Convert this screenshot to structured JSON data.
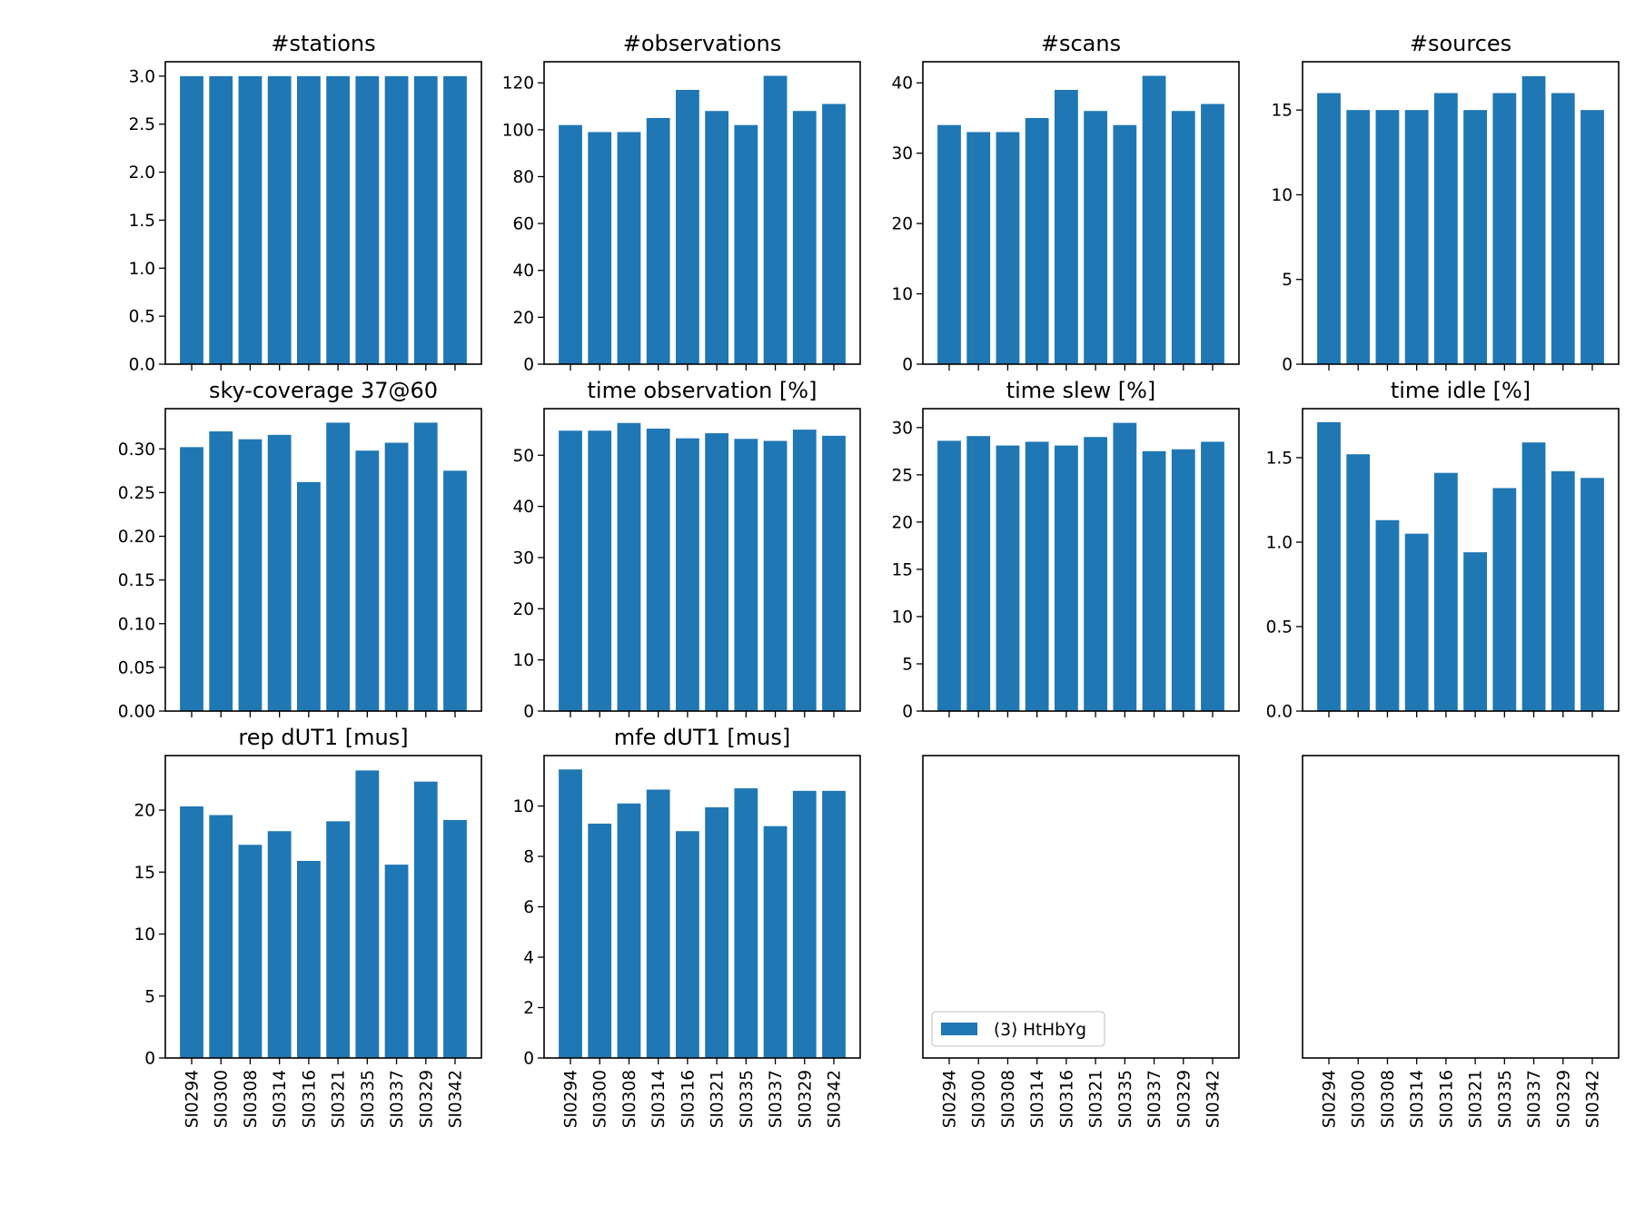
{
  "colors": {
    "bar": "#1f77b4"
  },
  "categories": [
    "SI0294",
    "SI0300",
    "SI0308",
    "SI0314",
    "SI0316",
    "SI0321",
    "SI0335",
    "SI0337",
    "SI0329",
    "SI0342"
  ],
  "legend": {
    "label": "(3) HtHbYg",
    "color": "#1f77b4"
  },
  "chart_data": [
    {
      "type": "bar",
      "title": "#stations",
      "series": [
        {
          "name": "(3) HtHbYg",
          "values": [
            3,
            3,
            3,
            3,
            3,
            3,
            3,
            3,
            3,
            3
          ]
        }
      ],
      "ylim": [
        0,
        3.15
      ],
      "yticks": [
        0,
        0.5,
        1,
        1.5,
        2,
        2.5,
        3
      ],
      "ytick_labels": [
        "0.0",
        "0.5",
        "1.0",
        "1.5",
        "2.0",
        "2.5",
        "3.0"
      ]
    },
    {
      "type": "bar",
      "title": "#observations",
      "series": [
        {
          "name": "(3) HtHbYg",
          "values": [
            102,
            99,
            99,
            105,
            117,
            108,
            102,
            123,
            108,
            111
          ]
        }
      ],
      "ylim": [
        0,
        129
      ],
      "yticks": [
        0,
        20,
        40,
        60,
        80,
        100,
        120
      ],
      "ytick_labels": [
        "0",
        "20",
        "40",
        "60",
        "80",
        "100",
        "120"
      ]
    },
    {
      "type": "bar",
      "title": "#scans",
      "series": [
        {
          "name": "(3) HtHbYg",
          "values": [
            34,
            33,
            33,
            35,
            39,
            36,
            34,
            41,
            36,
            37
          ]
        }
      ],
      "ylim": [
        0,
        43
      ],
      "yticks": [
        0,
        10,
        20,
        30,
        40
      ],
      "ytick_labels": [
        "0",
        "10",
        "20",
        "30",
        "40"
      ]
    },
    {
      "type": "bar",
      "title": "#sources",
      "series": [
        {
          "name": "(3) HtHbYg",
          "values": [
            16,
            15,
            15,
            15,
            16,
            15,
            16,
            17,
            16,
            15
          ]
        }
      ],
      "ylim": [
        0,
        17.85
      ],
      "yticks": [
        0,
        5,
        10,
        15
      ],
      "ytick_labels": [
        "0",
        "5",
        "10",
        "15"
      ]
    },
    {
      "type": "bar",
      "title": "sky-coverage 37@60",
      "series": [
        {
          "name": "(3) HtHbYg",
          "values": [
            0.302,
            0.32,
            0.311,
            0.316,
            0.262,
            0.33,
            0.298,
            0.307,
            0.33,
            0.275
          ]
        }
      ],
      "ylim": [
        0,
        0.346
      ],
      "yticks": [
        0,
        0.05,
        0.1,
        0.15,
        0.2,
        0.25,
        0.3
      ],
      "ytick_labels": [
        "0.00",
        "0.05",
        "0.10",
        "0.15",
        "0.20",
        "0.25",
        "0.30"
      ]
    },
    {
      "type": "bar",
      "title": "time observation [%]",
      "series": [
        {
          "name": "(3) HtHbYg",
          "values": [
            54.8,
            54.8,
            56.3,
            55.2,
            53.3,
            54.3,
            53.2,
            52.8,
            55.0,
            53.8
          ]
        }
      ],
      "ylim": [
        0,
        59.1
      ],
      "yticks": [
        0,
        10,
        20,
        30,
        40,
        50
      ],
      "ytick_labels": [
        "0",
        "10",
        "20",
        "30",
        "40",
        "50"
      ]
    },
    {
      "type": "bar",
      "title": "time slew [%]",
      "series": [
        {
          "name": "(3) HtHbYg",
          "values": [
            28.6,
            29.1,
            28.1,
            28.5,
            28.1,
            29.0,
            30.5,
            27.5,
            27.7,
            28.5
          ]
        }
      ],
      "ylim": [
        0,
        32.0
      ],
      "yticks": [
        0,
        5,
        10,
        15,
        20,
        25,
        30
      ],
      "ytick_labels": [
        "0",
        "5",
        "10",
        "15",
        "20",
        "25",
        "30"
      ]
    },
    {
      "type": "bar",
      "title": "time idle [%]",
      "series": [
        {
          "name": "(3) HtHbYg",
          "values": [
            1.71,
            1.52,
            1.13,
            1.05,
            1.41,
            0.94,
            1.32,
            1.59,
            1.42,
            1.38
          ]
        }
      ],
      "ylim": [
        0,
        1.79
      ],
      "yticks": [
        0,
        0.5,
        1,
        1.5
      ],
      "ytick_labels": [
        "0.0",
        "0.5",
        "1.0",
        "1.5"
      ]
    },
    {
      "type": "bar",
      "title": "rep dUT1 [mus]",
      "series": [
        {
          "name": "(3) HtHbYg",
          "values": [
            20.3,
            19.6,
            17.2,
            18.3,
            15.9,
            19.1,
            23.2,
            15.6,
            22.3,
            19.2
          ]
        }
      ],
      "ylim": [
        0,
        24.4
      ],
      "yticks": [
        0,
        5,
        10,
        15,
        20
      ],
      "ytick_labels": [
        "0",
        "5",
        "10",
        "15",
        "20"
      ]
    },
    {
      "type": "bar",
      "title": "mfe dUT1 [mus]",
      "series": [
        {
          "name": "(3) HtHbYg",
          "values": [
            11.45,
            9.3,
            10.1,
            10.65,
            9.0,
            9.95,
            10.7,
            9.2,
            10.6,
            10.6
          ]
        }
      ],
      "ylim": [
        0,
        12.0
      ],
      "yticks": [
        0,
        2,
        4,
        6,
        8,
        10
      ],
      "ytick_labels": [
        "0",
        "2",
        "4",
        "6",
        "8",
        "10"
      ]
    },
    {
      "type": "bar",
      "title": "",
      "series": [],
      "show_legend": true,
      "yticks": [],
      "ytick_labels": []
    },
    {
      "type": "bar",
      "title": "",
      "series": [],
      "yticks": [],
      "ytick_labels": []
    }
  ]
}
